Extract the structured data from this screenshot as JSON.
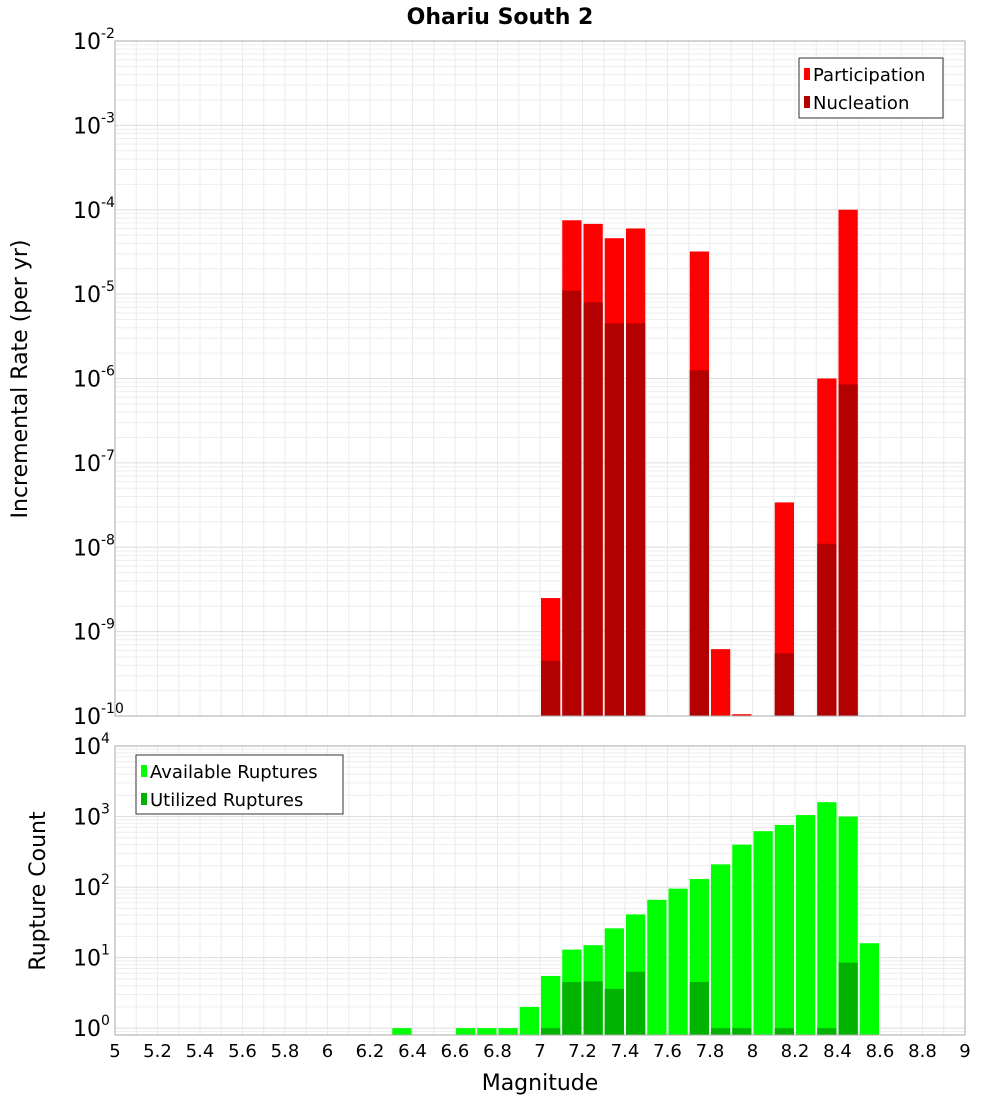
{
  "chart_data": [
    {
      "type": "bar",
      "title": "Ohariu South 2",
      "xlabel": "",
      "ylabel": "Incremental Rate (per yr)",
      "xlim": [
        5,
        9
      ],
      "ylim": [
        1e-10,
        0.01
      ],
      "yscale": "log",
      "bin_width": 0.1,
      "grid": true,
      "legend_position": "top-right",
      "y_ticks": [
        {
          "base": "10",
          "exp": "-2",
          "value": 0.01
        },
        {
          "base": "10",
          "exp": "-3",
          "value": 0.001
        },
        {
          "base": "10",
          "exp": "-4",
          "value": 0.0001
        },
        {
          "base": "10",
          "exp": "-5",
          "value": 1e-05
        },
        {
          "base": "10",
          "exp": "-6",
          "value": 1e-06
        },
        {
          "base": "10",
          "exp": "-7",
          "value": 1e-07
        },
        {
          "base": "10",
          "exp": "-8",
          "value": 1e-08
        },
        {
          "base": "10",
          "exp": "-9",
          "value": 1e-09
        },
        {
          "base": "10",
          "exp": "-10",
          "value": 1e-10
        }
      ],
      "series": [
        {
          "name": "Participation",
          "color": "#ff0000",
          "points": [
            {
              "x": 7.05,
              "y": 2.5e-09
            },
            {
              "x": 7.15,
              "y": 7.5e-05
            },
            {
              "x": 7.25,
              "y": 6.8e-05
            },
            {
              "x": 7.35,
              "y": 4.6e-05
            },
            {
              "x": 7.45,
              "y": 6e-05
            },
            {
              "x": 7.75,
              "y": 3.2e-05
            },
            {
              "x": 7.85,
              "y": 6.2e-10
            },
            {
              "x": 7.95,
              "y": 1.05e-10
            },
            {
              "x": 8.15,
              "y": 3.4e-08
            },
            {
              "x": 8.35,
              "y": 1e-06
            },
            {
              "x": 8.45,
              "y": 0.0001
            }
          ]
        },
        {
          "name": "Nucleation",
          "color": "#b30000",
          "points": [
            {
              "x": 7.05,
              "y": 4.5e-10
            },
            {
              "x": 7.15,
              "y": 1.1e-05
            },
            {
              "x": 7.25,
              "y": 8e-06
            },
            {
              "x": 7.35,
              "y": 4.5e-06
            },
            {
              "x": 7.45,
              "y": 4.5e-06
            },
            {
              "x": 7.75,
              "y": 1.25e-06
            },
            {
              "x": 8.15,
              "y": 5.5e-10
            },
            {
              "x": 8.35,
              "y": 1.1e-08
            },
            {
              "x": 8.45,
              "y": 8.5e-07
            }
          ]
        }
      ]
    },
    {
      "type": "bar",
      "title": "",
      "xlabel": "Magnitude",
      "ylabel": "Rupture Count",
      "xlim": [
        5,
        9
      ],
      "ylim": [
        0.8,
        10000.0
      ],
      "yscale": "log",
      "bin_width": 0.1,
      "grid": true,
      "legend_position": "top-left",
      "x_ticks": [
        "5",
        "5.2",
        "5.4",
        "5.6",
        "5.8",
        "6",
        "6.2",
        "6.4",
        "6.6",
        "6.8",
        "7",
        "7.2",
        "7.4",
        "7.6",
        "7.8",
        "8",
        "8.2",
        "8.4",
        "8.6",
        "8.8",
        "9"
      ],
      "y_ticks": [
        {
          "base": "10",
          "exp": "4",
          "value": 10000.0
        },
        {
          "base": "10",
          "exp": "3",
          "value": 1000.0
        },
        {
          "base": "10",
          "exp": "2",
          "value": 100.0
        },
        {
          "base": "10",
          "exp": "1",
          "value": 10.0
        },
        {
          "base": "10",
          "exp": "0",
          "value": 1
        }
      ],
      "series": [
        {
          "name": "Available Ruptures",
          "color": "#00ff00",
          "points": [
            {
              "x": 6.35,
              "y": 1
            },
            {
              "x": 6.65,
              "y": 1
            },
            {
              "x": 6.75,
              "y": 1
            },
            {
              "x": 6.85,
              "y": 1
            },
            {
              "x": 6.95,
              "y": 2
            },
            {
              "x": 7.05,
              "y": 5.5
            },
            {
              "x": 7.15,
              "y": 13
            },
            {
              "x": 7.25,
              "y": 15
            },
            {
              "x": 7.35,
              "y": 26
            },
            {
              "x": 7.45,
              "y": 41
            },
            {
              "x": 7.55,
              "y": 66
            },
            {
              "x": 7.65,
              "y": 95
            },
            {
              "x": 7.75,
              "y": 130
            },
            {
              "x": 7.85,
              "y": 210
            },
            {
              "x": 7.95,
              "y": 400
            },
            {
              "x": 8.05,
              "y": 620
            },
            {
              "x": 8.15,
              "y": 760
            },
            {
              "x": 8.25,
              "y": 1050
            },
            {
              "x": 8.35,
              "y": 1600
            },
            {
              "x": 8.45,
              "y": 1000
            },
            {
              "x": 8.55,
              "y": 16
            }
          ]
        },
        {
          "name": "Utilized Ruptures",
          "color": "#00b300",
          "points": [
            {
              "x": 7.05,
              "y": 1
            },
            {
              "x": 7.15,
              "y": 4.5
            },
            {
              "x": 7.25,
              "y": 4.6
            },
            {
              "x": 7.35,
              "y": 3.6
            },
            {
              "x": 7.45,
              "y": 6.3
            },
            {
              "x": 7.75,
              "y": 4.5
            },
            {
              "x": 7.85,
              "y": 1
            },
            {
              "x": 7.95,
              "y": 1
            },
            {
              "x": 8.15,
              "y": 1
            },
            {
              "x": 8.35,
              "y": 1
            },
            {
              "x": 8.45,
              "y": 8.5
            }
          ]
        }
      ]
    }
  ]
}
